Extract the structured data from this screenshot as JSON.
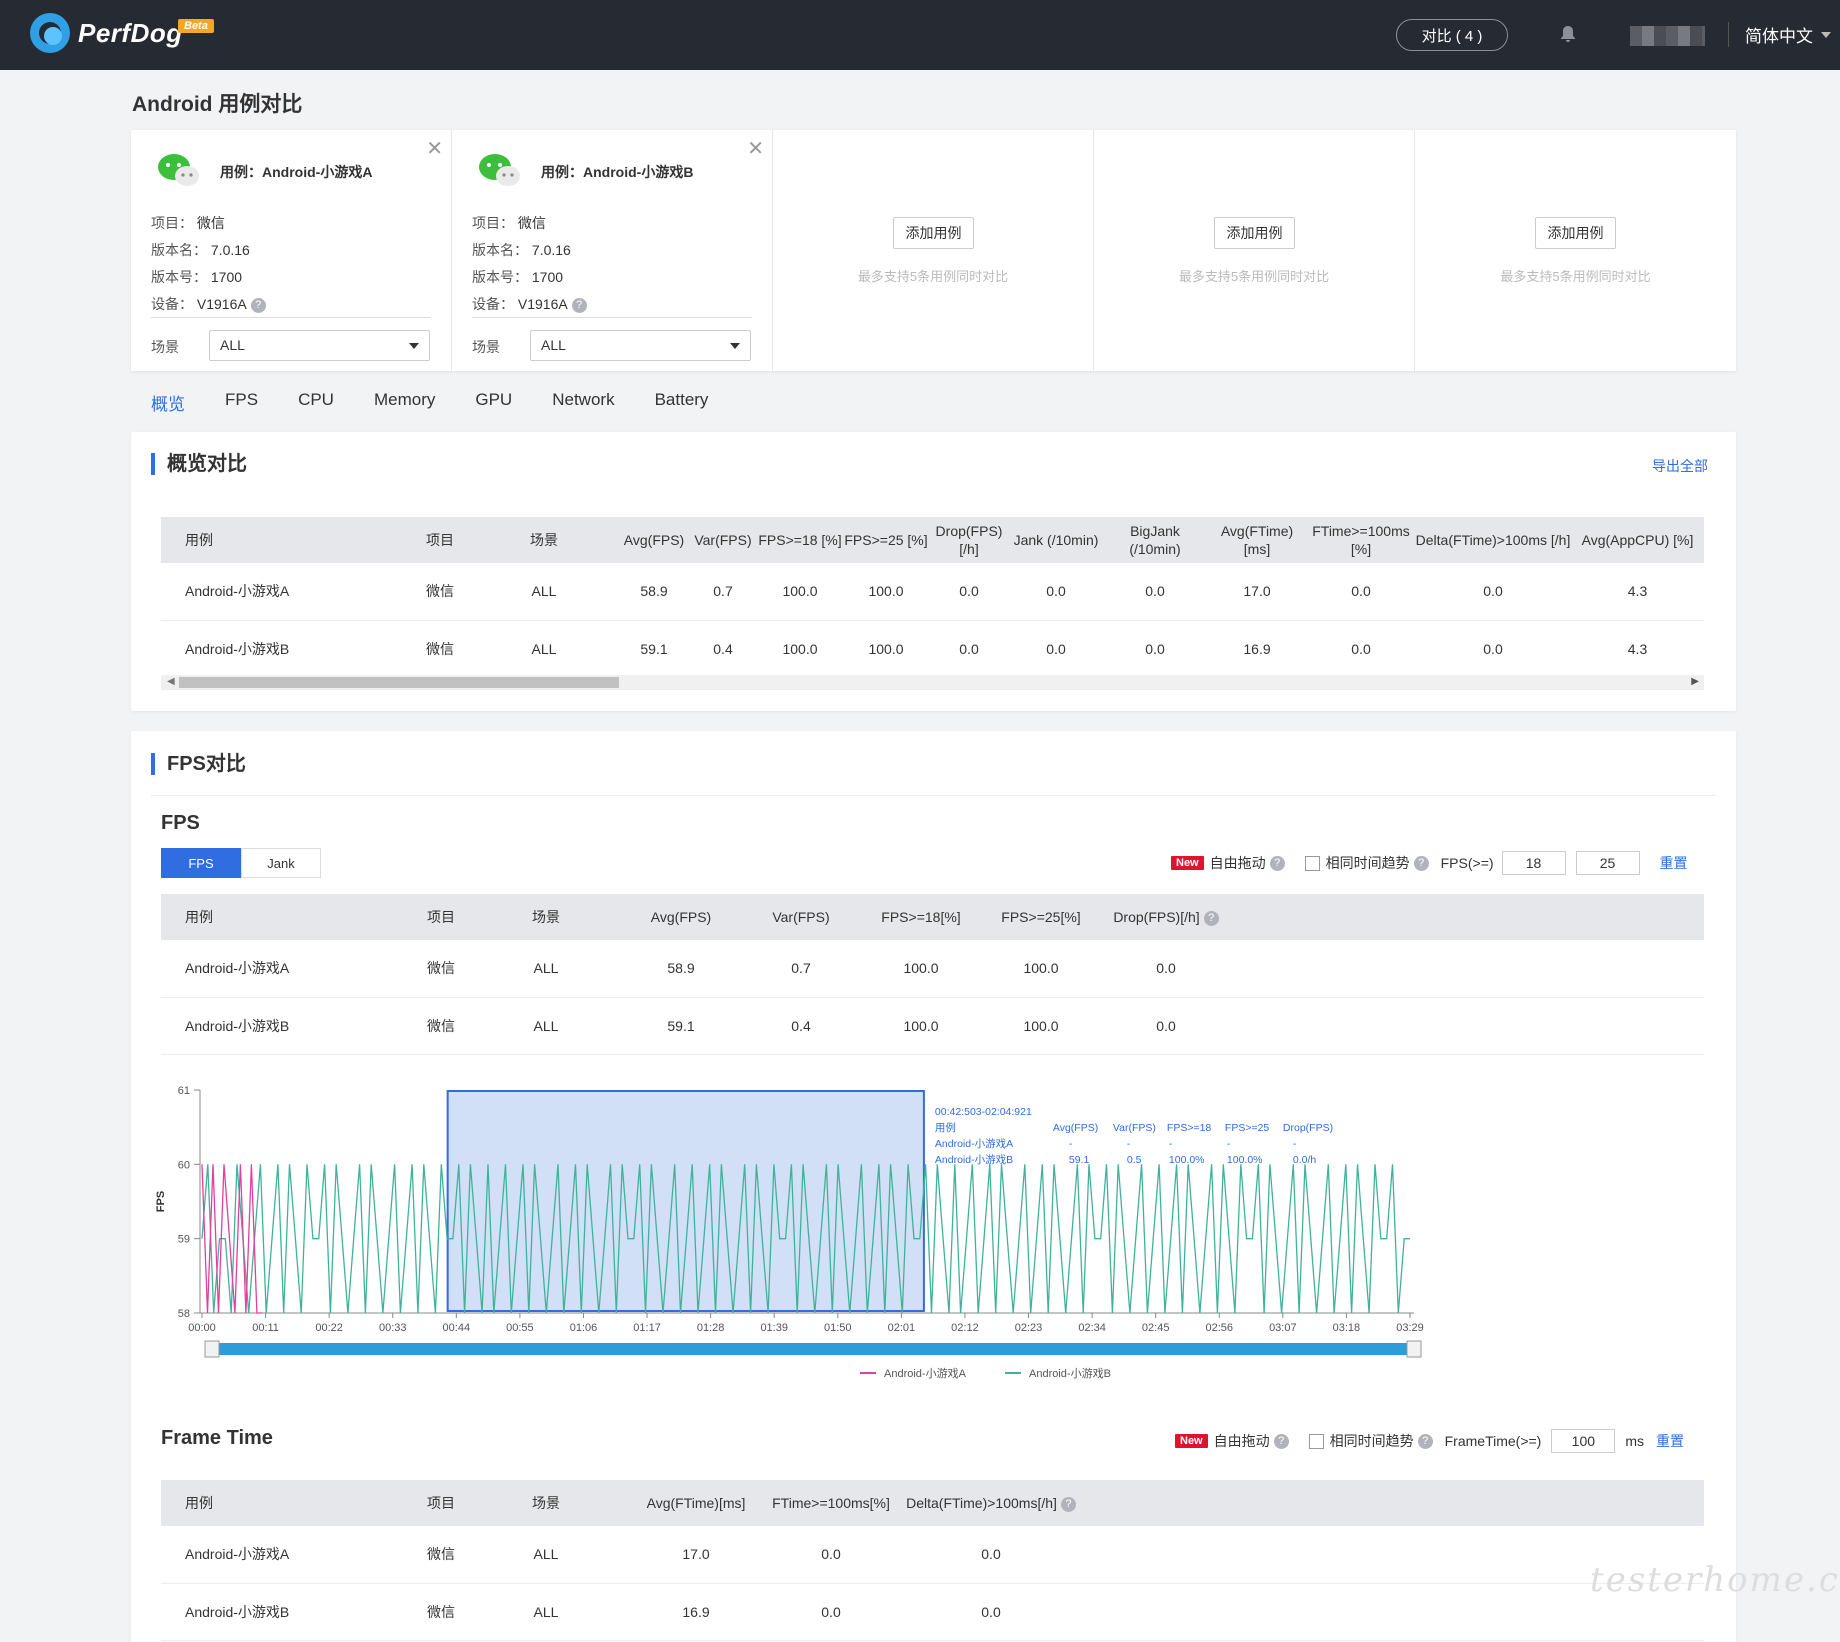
{
  "header": {
    "logo_text": "PerfDog",
    "beta": "Beta",
    "compare_label": "对比 ( 4 )",
    "language": "简体中文"
  },
  "page_title": "Android 用例对比",
  "cases": [
    {
      "name": "用例：Android-小游戏A",
      "project_label": "项目：",
      "project": "微信",
      "version_name_label": "版本名：",
      "version_name": "7.0.16",
      "version_code_label": "版本号：",
      "version_code": "1700",
      "device_label": "设备：",
      "device": "V1916A",
      "scene_label": "场景",
      "scene": "ALL"
    },
    {
      "name": "用例：Android-小游戏B",
      "project_label": "项目：",
      "project": "微信",
      "version_name_label": "版本名：",
      "version_name": "7.0.16",
      "version_code_label": "版本号：",
      "version_code": "1700",
      "device_label": "设备：",
      "device": "V1916A",
      "scene_label": "场景",
      "scene": "ALL"
    }
  ],
  "empty_slot": {
    "add_label": "添加用例",
    "hint": "最多支持5条用例同时对比"
  },
  "tabs": [
    "概览",
    "FPS",
    "CPU",
    "Memory",
    "GPU",
    "Network",
    "Battery"
  ],
  "overview": {
    "title": "概览对比",
    "export": "导出全部",
    "headers": [
      "用例",
      "项目",
      "场景",
      "Avg(FPS)",
      "Var(FPS)",
      "FPS>=18 [%]",
      "FPS>=25 [%]",
      "Drop(FPS) [/h]",
      "Jank (/10min)",
      "BigJank (/10min)",
      "Avg(FTime) [ms]",
      "FTime>=100ms [%]",
      "Delta(FTime)>100ms [/h]",
      "Avg(AppCPU) [%]"
    ],
    "rows": [
      [
        "Android-小游戏A",
        "微信",
        "ALL",
        "58.9",
        "0.7",
        "100.0",
        "100.0",
        "0.0",
        "0.0",
        "0.0",
        "17.0",
        "0.0",
        "0.0",
        "4.3"
      ],
      [
        "Android-小游戏B",
        "微信",
        "ALL",
        "59.1",
        "0.4",
        "100.0",
        "100.0",
        "0.0",
        "0.0",
        "0.0",
        "16.9",
        "0.0",
        "0.0",
        "4.3"
      ]
    ]
  },
  "fps_section": {
    "title": "FPS对比",
    "subtitle": "FPS",
    "seg": [
      "FPS",
      "Jank"
    ],
    "new": "New",
    "free_drag": "自由拖动",
    "same_time": "相同时间趋势",
    "fps_ge_label": "FPS(>=)",
    "fps_ge_1": "18",
    "fps_ge_2": "25",
    "reset": "重置",
    "headers": [
      "用例",
      "项目",
      "场景",
      "Avg(FPS)",
      "Var(FPS)",
      "FPS>=18[%]",
      "FPS>=25[%]",
      "Drop(FPS)[/h]"
    ],
    "rows": [
      [
        "Android-小游戏A",
        "微信",
        "ALL",
        "58.9",
        "0.7",
        "100.0",
        "100.0",
        "0.0"
      ],
      [
        "Android-小游戏B",
        "微信",
        "ALL",
        "59.1",
        "0.4",
        "100.0",
        "100.0",
        "0.0"
      ]
    ]
  },
  "chart_data": {
    "type": "line",
    "ylabel": "FPS",
    "ylim": [
      58,
      61
    ],
    "yticks": [
      "61",
      "60",
      "59",
      "58"
    ],
    "xticks": [
      "00:00",
      "00:11",
      "00:22",
      "00:33",
      "00:44",
      "00:55",
      "01:06",
      "01:17",
      "01:28",
      "01:39",
      "01:50",
      "02:01",
      "02:12",
      "02:23",
      "02:34",
      "02:45",
      "02:56",
      "03:07",
      "03:18",
      "03:29"
    ],
    "xlim_seconds": [
      0,
      209
    ],
    "selection": {
      "start_seconds": 42.5,
      "end_seconds": 124.9
    },
    "tooltip": {
      "range": "00:42:503-02:04:921",
      "headers": [
        "用例",
        "Avg(FPS)",
        "Var(FPS)",
        "FPS>=18",
        "FPS>=25",
        "Drop(FPS)"
      ],
      "rows": [
        [
          "Android-小游戏A",
          "-",
          "-",
          "-",
          "-",
          "-"
        ],
        [
          "Android-小游戏B",
          "59.1",
          "0.5",
          "100.0%",
          "100.0%",
          "0.0/h"
        ]
      ]
    },
    "series": [
      {
        "name": "Android-小游戏A",
        "color": "#e0409f",
        "x": [
          0,
          1,
          2,
          3,
          4,
          5,
          6,
          7,
          8,
          9,
          10,
          11
        ],
        "y": [
          60,
          58,
          60,
          58,
          60,
          59,
          58,
          60,
          58,
          60,
          58,
          58
        ]
      },
      {
        "name": "Android-小游戏B",
        "color": "#3fb39a",
        "x": [
          0,
          1,
          2,
          3,
          4,
          5,
          6,
          7,
          8,
          9,
          10,
          11,
          12,
          13,
          14,
          15,
          16,
          17,
          18,
          19,
          20,
          21,
          22,
          23,
          24,
          25,
          26,
          27,
          28,
          29,
          30,
          31,
          32,
          33,
          34,
          35,
          36,
          37,
          38,
          39,
          40,
          41,
          42,
          43,
          44,
          45,
          46,
          47,
          48,
          49,
          50,
          51,
          52,
          53,
          54,
          55,
          56,
          57,
          58,
          59,
          60,
          61,
          62,
          63,
          64,
          65,
          66,
          67,
          68,
          69,
          70,
          71,
          72,
          73,
          74,
          75,
          76,
          77,
          78,
          79,
          80,
          81,
          82,
          83,
          84,
          85,
          86,
          87,
          88,
          89,
          90,
          91,
          92,
          93,
          94,
          95,
          96,
          97,
          98,
          99,
          100,
          101,
          102,
          103,
          104,
          105,
          106,
          107,
          108,
          109,
          110,
          111,
          112,
          113,
          114,
          115,
          116,
          117,
          118,
          119,
          120,
          121,
          122,
          123,
          124,
          125,
          126,
          127,
          128,
          129,
          130,
          131,
          132,
          133,
          134,
          135,
          136,
          137,
          138,
          139,
          140,
          141,
          142,
          143,
          144,
          145,
          146,
          147,
          148,
          149,
          150,
          151,
          152,
          153,
          154,
          155,
          156,
          157,
          158,
          159,
          160,
          161,
          162,
          163,
          164,
          165,
          166,
          167,
          168,
          169,
          170,
          171,
          172,
          173,
          174,
          175,
          176,
          177,
          178,
          179,
          180,
          181,
          182,
          183,
          184,
          185,
          186,
          187,
          188,
          189,
          190,
          191,
          192,
          193,
          194,
          195,
          196,
          197,
          198,
          199,
          200,
          201,
          202,
          203,
          204,
          205,
          206,
          207
        ],
        "y": [
          59,
          60,
          58,
          59,
          59,
          58,
          60,
          59,
          58,
          59,
          60,
          58,
          59,
          60,
          58,
          60,
          59,
          58,
          60,
          59,
          59,
          60,
          58,
          60,
          59,
          58,
          59,
          60,
          58,
          60,
          59,
          58,
          59,
          60,
          58,
          59,
          60,
          58,
          60,
          59,
          58,
          60,
          59,
          59,
          60,
          58,
          60,
          59,
          58,
          60,
          58,
          59,
          60,
          58,
          59,
          60,
          58,
          60,
          59,
          58,
          59,
          60,
          58,
          59,
          60,
          58,
          60,
          59,
          58,
          59,
          60,
          58,
          60,
          59,
          59,
          60,
          58,
          60,
          59,
          58,
          59,
          60,
          58,
          59,
          60,
          58,
          59,
          60,
          58,
          60,
          59,
          58,
          59,
          60,
          58,
          60,
          59,
          58,
          60,
          59,
          59,
          60,
          58,
          60,
          59,
          58,
          59,
          60,
          58,
          60,
          59,
          58,
          59,
          60,
          58,
          59,
          60,
          58,
          60,
          59,
          58,
          60,
          59,
          59,
          60,
          58,
          60,
          59,
          58,
          60,
          58,
          59,
          60,
          58,
          59,
          60,
          58,
          60,
          59,
          58,
          59,
          60,
          58,
          59,
          60,
          58,
          60,
          59,
          58,
          59,
          60,
          58,
          60,
          59,
          59,
          60,
          58,
          60,
          59,
          58,
          59,
          60,
          58,
          59,
          60,
          58,
          59,
          60,
          58,
          60,
          59,
          58,
          59,
          60,
          58,
          60,
          59,
          58,
          60,
          59,
          59,
          60,
          58,
          60,
          59,
          58,
          59,
          60,
          58,
          60,
          59,
          58,
          59,
          60,
          58,
          59,
          60,
          58,
          60,
          59,
          58,
          60,
          59,
          59,
          60,
          58,
          59,
          59
        ]
      }
    ]
  },
  "frametime_section": {
    "subtitle": "Frame Time",
    "new": "New",
    "free_drag": "自由拖动",
    "same_time": "相同时间趋势",
    "ft_label": "FrameTime(>=)",
    "ft_value": "100",
    "ft_unit": "ms",
    "reset": "重置",
    "headers": [
      "用例",
      "项目",
      "场景",
      "Avg(FTime)[ms]",
      "FTime>=100ms[%]",
      "Delta(FTime)>100ms[/h]"
    ],
    "rows": [
      [
        "Android-小游戏A",
        "微信",
        "ALL",
        "17.0",
        "0.0",
        "0.0"
      ],
      [
        "Android-小游戏B",
        "微信",
        "ALL",
        "16.9",
        "0.0",
        "0.0"
      ]
    ]
  },
  "watermark": "testerhome.com"
}
